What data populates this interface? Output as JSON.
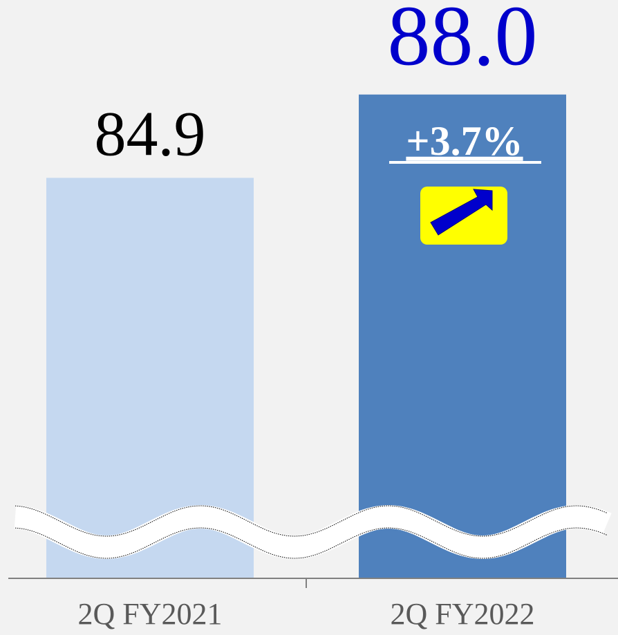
{
  "chart_data": {
    "type": "bar",
    "categories": [
      "2Q FY2021",
      "2Q FY2022"
    ],
    "values": [
      84.9,
      88.0
    ],
    "value_labels": [
      "84.9",
      "88.0"
    ],
    "colors": [
      "#c5d8f0",
      "#4f81bd"
    ],
    "value_label_colors": [
      "#000000",
      "#0000cc"
    ],
    "ylim": [
      70,
      90
    ],
    "annotation": "+3.7%"
  }
}
